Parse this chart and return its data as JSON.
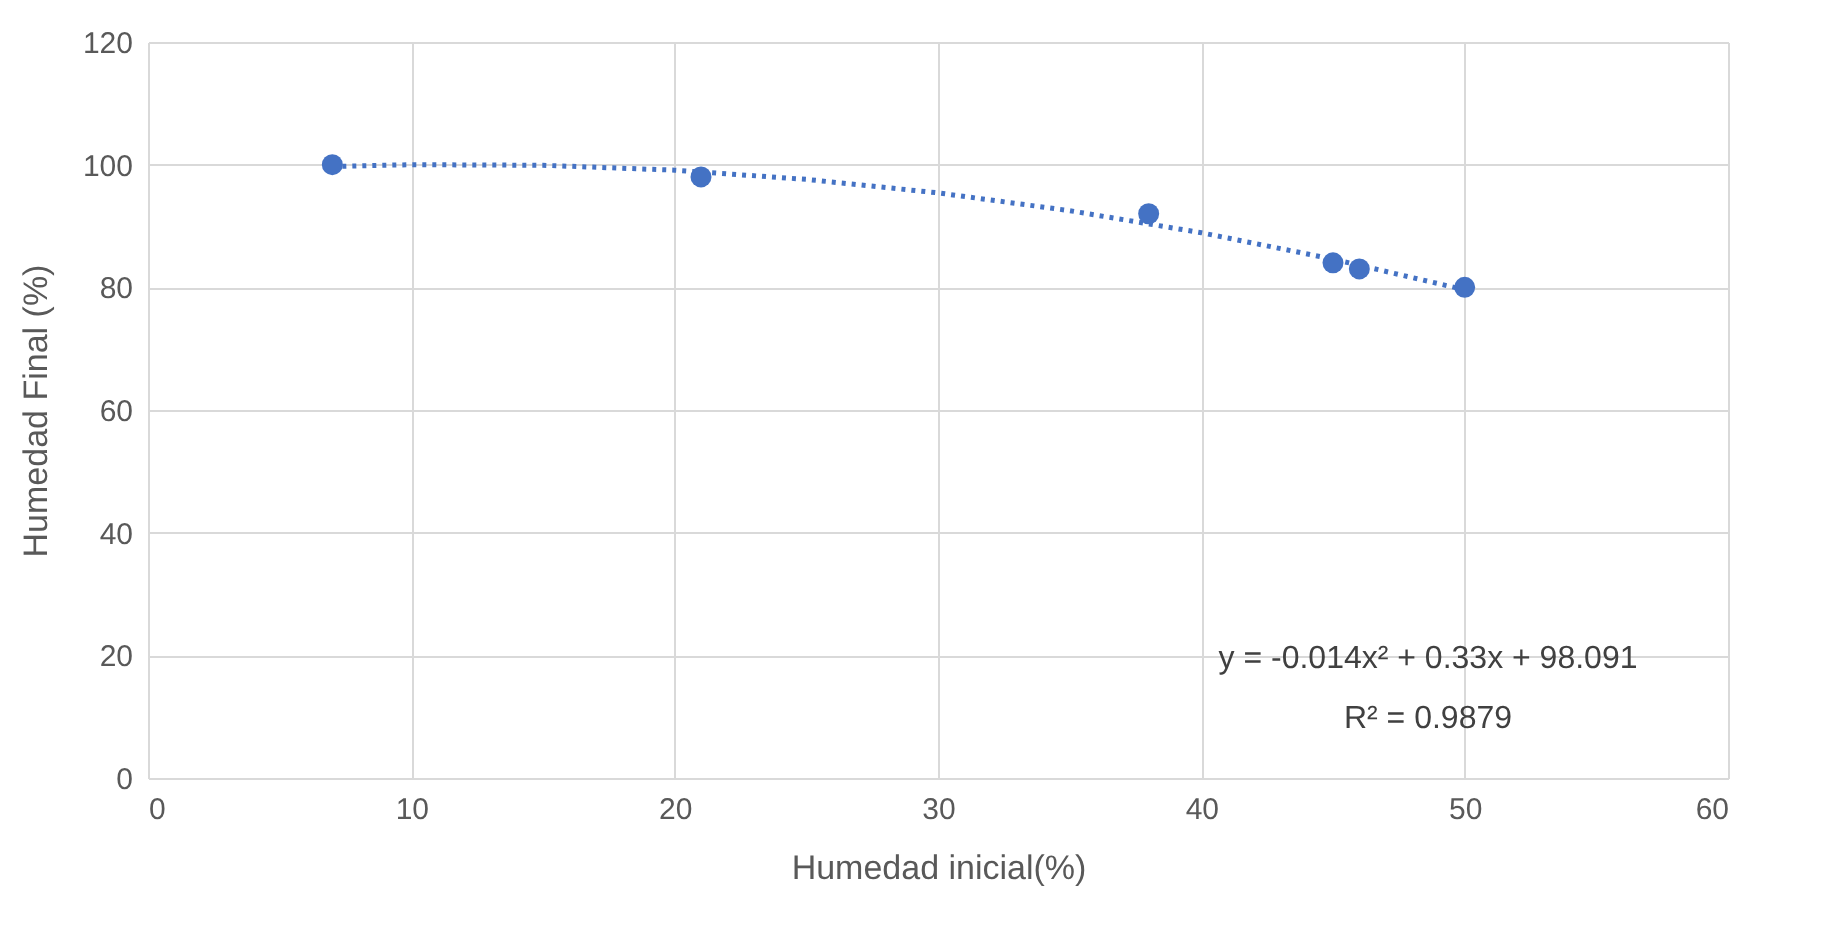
{
  "chart_data": {
    "type": "scatter",
    "xlabel": "Humedad inicial(%)",
    "ylabel": "Humedad Final (%)",
    "annotations": [
      "y = -0.014x² + 0.33x + 98.091",
      "R² = 0.9879"
    ],
    "xlim": [
      0,
      60
    ],
    "xticks": [
      0,
      10,
      20,
      30,
      40,
      50,
      60
    ],
    "ylim": [
      0,
      120
    ],
    "yticks": [
      0,
      20,
      40,
      60,
      80,
      100,
      120
    ],
    "grid": true,
    "series": [
      {
        "marker": "circle",
        "color": "#4472c4",
        "x": [
          7,
          21,
          38,
          45,
          46,
          50
        ],
        "values": [
          100,
          98,
          92,
          84,
          83,
          80
        ]
      },
      {
        "type": "line",
        "color": "#4472c4",
        "line_style": "dotted",
        "x": [
          7,
          10,
          15,
          20,
          25,
          30,
          35,
          40,
          45,
          50
        ],
        "values": [
          99.7,
          100,
          99.9,
          99.1,
          97.6,
          95.4,
          92.5,
          88.9,
          84.6,
          79.6
        ]
      }
    ]
  }
}
